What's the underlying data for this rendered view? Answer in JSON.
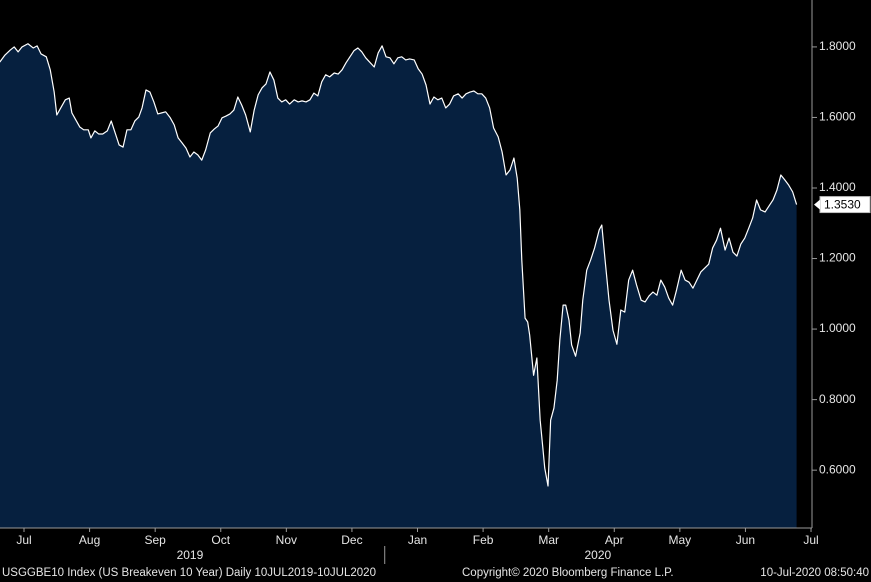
{
  "chart_data": {
    "type": "area",
    "line_color": "#ffffff",
    "fill_color": "#06203f",
    "background": "#000000",
    "x": [
      -0.37,
      -0.29,
      -0.21,
      -0.15,
      -0.09,
      -0.03,
      0.06,
      0.14,
      0.2,
      0.26,
      0.34,
      0.4,
      0.46,
      0.5,
      0.56,
      0.63,
      0.69,
      0.73,
      0.79,
      0.85,
      0.91,
      0.98,
      1.02,
      1.08,
      1.14,
      1.2,
      1.27,
      1.33,
      1.39,
      1.45,
      1.51,
      1.57,
      1.63,
      1.69,
      1.75,
      1.8,
      1.86,
      1.92,
      1.98,
      2.04,
      2.1,
      2.16,
      2.23,
      2.29,
      2.35,
      2.41,
      2.47,
      2.53,
      2.59,
      2.65,
      2.71,
      2.77,
      2.84,
      2.9,
      2.96,
      3.02,
      3.08,
      3.14,
      3.2,
      3.26,
      3.32,
      3.38,
      3.45,
      3.51,
      3.57,
      3.63,
      3.69,
      3.75,
      3.81,
      3.87,
      3.93,
      3.99,
      4.05,
      4.12,
      4.18,
      4.24,
      4.3,
      4.36,
      4.42,
      4.48,
      4.54,
      4.6,
      4.66,
      4.73,
      4.79,
      4.85,
      4.91,
      4.97,
      5.03,
      5.09,
      5.15,
      5.21,
      5.27,
      5.34,
      5.4,
      5.46,
      5.52,
      5.58,
      5.64,
      5.7,
      5.76,
      5.82,
      5.88,
      5.95,
      6.01,
      6.07,
      6.13,
      6.19,
      6.25,
      6.31,
      6.37,
      6.43,
      6.49,
      6.55,
      6.62,
      6.68,
      6.74,
      6.8,
      6.86,
      6.92,
      6.98,
      7.04,
      7.1,
      7.16,
      7.23,
      7.29,
      7.35,
      7.41,
      7.47,
      7.52,
      7.56,
      7.59,
      7.64,
      7.68,
      7.71,
      7.77,
      7.82,
      7.87,
      7.91,
      7.94,
      7.99,
      8.03,
      8.08,
      8.13,
      8.17,
      8.22,
      8.26,
      8.31,
      8.35,
      8.41,
      8.48,
      8.52,
      8.58,
      8.64,
      8.7,
      8.77,
      8.81,
      8.86,
      8.92,
      8.98,
      9.04,
      9.1,
      9.16,
      9.22,
      9.28,
      9.34,
      9.41,
      9.47,
      9.53,
      9.59,
      9.65,
      9.71,
      9.77,
      9.83,
      9.89,
      9.95,
      10.02,
      10.08,
      10.14,
      10.2,
      10.26,
      10.32,
      10.38,
      10.44,
      10.5,
      10.56,
      10.62,
      10.69,
      10.75,
      10.81,
      10.87,
      10.93,
      10.99,
      11.05,
      11.11,
      11.17,
      11.23,
      11.3,
      11.36,
      11.42,
      11.48,
      11.54,
      11.6,
      11.66,
      11.72,
      11.78
    ],
    "values": [
      1.757,
      1.777,
      1.791,
      1.8,
      1.786,
      1.8,
      1.809,
      1.797,
      1.803,
      1.78,
      1.772,
      1.735,
      1.672,
      1.607,
      1.627,
      1.65,
      1.655,
      1.613,
      1.593,
      1.573,
      1.565,
      1.565,
      1.542,
      1.562,
      1.553,
      1.553,
      1.562,
      1.59,
      1.556,
      1.522,
      1.516,
      1.565,
      1.565,
      1.59,
      1.601,
      1.627,
      1.678,
      1.672,
      1.644,
      1.61,
      1.613,
      1.616,
      1.599,
      1.579,
      1.542,
      1.528,
      1.513,
      1.488,
      1.502,
      1.494,
      1.479,
      1.508,
      1.556,
      1.567,
      1.576,
      1.599,
      1.604,
      1.61,
      1.621,
      1.658,
      1.635,
      1.607,
      1.559,
      1.621,
      1.664,
      1.684,
      1.695,
      1.729,
      1.706,
      1.655,
      1.644,
      1.65,
      1.638,
      1.65,
      1.644,
      1.647,
      1.644,
      1.65,
      1.669,
      1.661,
      1.701,
      1.721,
      1.715,
      1.726,
      1.723,
      1.735,
      1.755,
      1.772,
      1.789,
      1.797,
      1.786,
      1.769,
      1.757,
      1.743,
      1.783,
      1.803,
      1.772,
      1.769,
      1.752,
      1.769,
      1.772,
      1.763,
      1.766,
      1.763,
      1.738,
      1.723,
      1.692,
      1.638,
      1.658,
      1.65,
      1.655,
      1.627,
      1.638,
      1.661,
      1.667,
      1.655,
      1.667,
      1.672,
      1.675,
      1.667,
      1.667,
      1.655,
      1.627,
      1.57,
      1.545,
      1.502,
      1.437,
      1.451,
      1.485,
      1.428,
      1.338,
      1.196,
      1.031,
      1.02,
      0.983,
      0.869,
      0.918,
      0.742,
      0.665,
      0.606,
      0.555,
      0.742,
      0.776,
      0.855,
      0.969,
      1.068,
      1.068,
      1.025,
      0.955,
      0.923,
      0.989,
      1.082,
      1.167,
      1.196,
      1.23,
      1.281,
      1.295,
      1.196,
      1.082,
      0.997,
      0.957,
      1.054,
      1.048,
      1.139,
      1.167,
      1.125,
      1.082,
      1.077,
      1.094,
      1.105,
      1.096,
      1.139,
      1.119,
      1.088,
      1.068,
      1.111,
      1.167,
      1.139,
      1.133,
      1.116,
      1.139,
      1.162,
      1.173,
      1.184,
      1.23,
      1.252,
      1.286,
      1.224,
      1.258,
      1.218,
      1.207,
      1.241,
      1.258,
      1.286,
      1.315,
      1.366,
      1.338,
      1.332,
      1.349,
      1.366,
      1.394,
      1.437,
      1.423,
      1.408,
      1.389,
      1.353
    ],
    "xlim": [
      -0.366,
      12.015
    ],
    "xticks": [
      {
        "value": 0,
        "label": "Jul"
      },
      {
        "value": 1,
        "label": "Aug"
      },
      {
        "value": 2,
        "label": "Sep"
      },
      {
        "value": 3,
        "label": "Oct"
      },
      {
        "value": 4,
        "label": "Nov"
      },
      {
        "value": 5,
        "label": "Dec"
      },
      {
        "value": 6,
        "label": "Jan"
      },
      {
        "value": 7,
        "label": "Feb"
      },
      {
        "value": 8,
        "label": "Mar"
      },
      {
        "value": 9,
        "label": "Apr"
      },
      {
        "value": 10,
        "label": "May"
      },
      {
        "value": 11,
        "label": "Jun"
      },
      {
        "value": 12,
        "label": "Jul"
      }
    ],
    "year_labels": [
      {
        "value": 2.53,
        "label": "2019"
      },
      {
        "value": 8.75,
        "label": "2020"
      }
    ],
    "ylim": [
      0.436,
      1.933
    ],
    "yticks": [
      {
        "value": 0.6,
        "label": "0.6000"
      },
      {
        "value": 0.8,
        "label": "0.8000"
      },
      {
        "value": 1.0,
        "label": "1.0000"
      },
      {
        "value": 1.2,
        "label": "1.2000"
      },
      {
        "value": 1.4,
        "label": "1.4000"
      },
      {
        "value": 1.6,
        "label": "1.6000"
      },
      {
        "value": 1.8,
        "label": "1.8000"
      }
    ],
    "annotations": [
      {
        "value": 1.353,
        "label": "1.3530"
      }
    ],
    "footer": {
      "security": "USGGBE10 Index (US Breakeven 10 Year)  Daily 10JUL2019-10JUL2020",
      "copyright": "Copyright© 2020 Bloomberg Finance L.P.",
      "timestamp": "10-Jul-2020 08:50:40"
    }
  }
}
